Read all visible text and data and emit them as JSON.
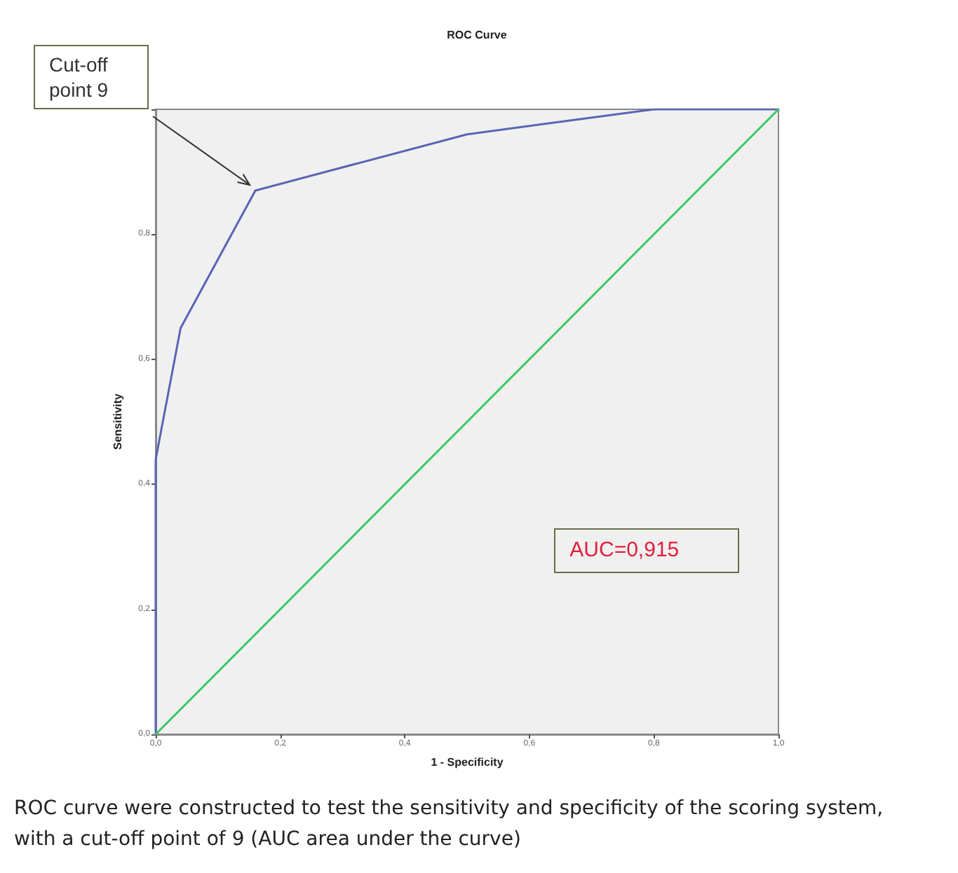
{
  "chart_data": {
    "type": "line",
    "title": "ROC Curve",
    "xlabel": "1 - Specificity",
    "ylabel": "Sensitivity",
    "xlim": [
      0,
      1
    ],
    "ylim": [
      0,
      1
    ],
    "xticks": [
      {
        "value": 0,
        "label": "0,0"
      },
      {
        "value": 0.2,
        "label": "0,2"
      },
      {
        "value": 0.4,
        "label": "0,4"
      },
      {
        "value": 0.6,
        "label": "0,6"
      },
      {
        "value": 0.8,
        "label": "0,8"
      },
      {
        "value": 1,
        "label": "1,0"
      }
    ],
    "yticks": [
      {
        "value": 0,
        "label": "0,0"
      },
      {
        "value": 0.2,
        "label": "0,2"
      },
      {
        "value": 0.4,
        "label": "0,4"
      },
      {
        "value": 0.6,
        "label": "0,6"
      },
      {
        "value": 0.8,
        "label": "0,8"
      },
      {
        "value": 1,
        "label": null
      }
    ],
    "series": [
      {
        "color": "#5a64b4",
        "x": [
          0,
          0,
          0.04,
          0.16,
          0.5,
          0.8,
          1
        ],
        "values": [
          0,
          0.44,
          0.65,
          0.87,
          0.96,
          1,
          1
        ]
      },
      {
        "color": "#3cc864",
        "x": [
          0,
          1
        ],
        "values": [
          0,
          1
        ]
      }
    ],
    "annotations": [
      "Cut-off point 9",
      "AUC=0,915",
      "ROC curve were constructed to test the sensitivity and specificity of the scoring system, with a cut-off point of 9 (AUC area under the curve)"
    ],
    "grid": false,
    "marker": "none",
    "line_style": "solid"
  }
}
